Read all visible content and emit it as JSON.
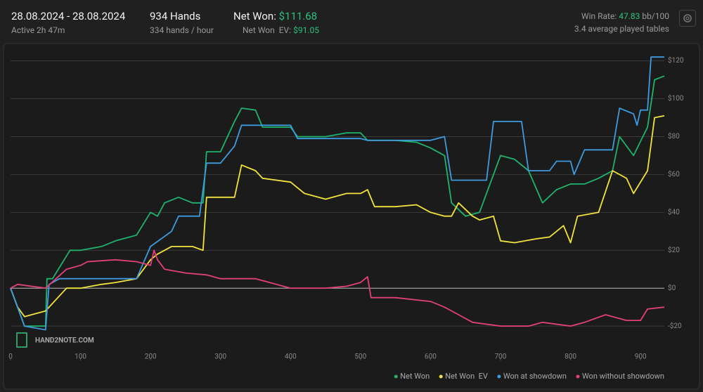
{
  "header": {
    "date_range": "28.08.2024 - 28.08.2024",
    "active": "Active 2h 47m",
    "hands": "934 Hands",
    "rate": "334 hands / hour",
    "net_won_label": "Net Won:",
    "net_won": "$111.68",
    "net_won_ev_label": "Net Won  EV:",
    "net_won_ev": "$91.05",
    "win_rate_label": "Win Rate:",
    "win_rate": "47.83",
    "win_rate_unit": "bb/100",
    "tables": "3.4 average played tables"
  },
  "watermark": "HAND2NOTE.COM",
  "chart_data": {
    "type": "line",
    "xlim": [
      0,
      934
    ],
    "xticks": [
      0,
      100,
      200,
      300,
      400,
      500,
      600,
      700,
      800,
      900
    ],
    "ylim": [
      -37,
      128
    ],
    "yticks": [
      {
        "value": 120,
        "label": "$120"
      },
      {
        "value": 100,
        "label": "$100"
      },
      {
        "value": 80,
        "label": "$80"
      },
      {
        "value": 60,
        "label": "$60"
      },
      {
        "value": 40,
        "label": "$40"
      },
      {
        "value": 20,
        "label": "$20"
      },
      {
        "value": 0,
        "label": "$0"
      },
      {
        "value": -20,
        "label": "-$20"
      }
    ],
    "grid": true,
    "legend": "bottom-right",
    "series": [
      {
        "name": "Net Won",
        "color": "#1fb36b",
        "x": [
          0,
          10,
          20,
          50,
          52,
          60,
          85,
          100,
          130,
          150,
          180,
          200,
          210,
          220,
          240,
          260,
          275,
          280,
          300,
          320,
          330,
          350,
          360,
          400,
          410,
          450,
          480,
          500,
          510,
          550,
          580,
          600,
          620,
          630,
          650,
          670,
          690,
          700,
          720,
          740,
          760,
          780,
          800,
          820,
          840,
          860,
          870,
          890,
          910,
          920,
          934
        ],
        "values": [
          0,
          -10,
          -20,
          -20,
          5,
          5,
          20,
          20,
          22,
          25,
          28,
          40,
          38,
          45,
          48,
          45,
          45,
          72,
          72,
          88,
          95,
          94,
          85,
          85,
          80,
          80,
          82,
          82,
          78,
          78,
          77,
          74,
          70,
          45,
          38,
          40,
          60,
          70,
          68,
          62,
          45,
          52,
          55,
          55,
          58,
          62,
          80,
          70,
          85,
          110,
          112
        ]
      },
      {
        "name": "Net Won  EV",
        "color": "#f2e33c",
        "x": [
          0,
          10,
          20,
          50,
          80,
          100,
          130,
          150,
          180,
          200,
          210,
          230,
          260,
          275,
          280,
          300,
          320,
          330,
          350,
          360,
          400,
          420,
          450,
          480,
          500,
          510,
          520,
          550,
          580,
          600,
          620,
          630,
          640,
          660,
          670,
          690,
          700,
          720,
          750,
          770,
          790,
          800,
          810,
          840,
          860,
          880,
          890,
          910,
          920,
          934
        ],
        "values": [
          0,
          -10,
          -15,
          -12,
          0,
          0,
          2,
          3,
          5,
          15,
          18,
          22,
          22,
          20,
          48,
          48,
          48,
          65,
          62,
          58,
          56,
          50,
          47,
          50,
          50,
          52,
          43,
          43,
          44,
          40,
          38,
          38,
          45,
          38,
          36,
          38,
          25,
          24,
          26,
          27,
          33,
          24,
          38,
          40,
          62,
          58,
          50,
          62,
          90,
          91
        ]
      },
      {
        "name": "Won at showdown",
        "color": "#3e9be0",
        "x": [
          0,
          20,
          50,
          55,
          70,
          85,
          180,
          200,
          230,
          240,
          270,
          280,
          300,
          320,
          330,
          350,
          400,
          410,
          450,
          500,
          510,
          550,
          600,
          620,
          630,
          650,
          680,
          690,
          730,
          740,
          770,
          780,
          800,
          805,
          820,
          840,
          860,
          870,
          890,
          895,
          900,
          910,
          915,
          934
        ],
        "values": [
          0,
          -20,
          -22,
          2,
          5,
          5,
          5,
          22,
          30,
          38,
          38,
          66,
          66,
          75,
          86,
          86,
          86,
          79,
          79,
          79,
          78,
          78,
          78,
          80,
          57,
          57,
          57,
          88,
          88,
          62,
          62,
          67,
          67,
          60,
          73,
          73,
          73,
          95,
          92,
          86,
          94,
          94,
          122,
          122
        ]
      },
      {
        "name": "Won without showdown",
        "color": "#e2407c",
        "x": [
          0,
          10,
          50,
          80,
          100,
          110,
          150,
          180,
          200,
          205,
          210,
          220,
          250,
          280,
          300,
          350,
          400,
          450,
          480,
          500,
          510,
          515,
          550,
          600,
          620,
          640,
          660,
          700,
          740,
          760,
          800,
          820,
          850,
          880,
          900,
          910,
          934
        ],
        "values": [
          0,
          2,
          0,
          10,
          12,
          14,
          15,
          14,
          12,
          20,
          15,
          10,
          8,
          7,
          5,
          5,
          0,
          0,
          1,
          3,
          6,
          -5,
          -5,
          -7,
          -10,
          -14,
          -18,
          -20,
          -20,
          -18,
          -20,
          -18,
          -14,
          -17,
          -17,
          -11,
          -10
        ]
      }
    ]
  }
}
